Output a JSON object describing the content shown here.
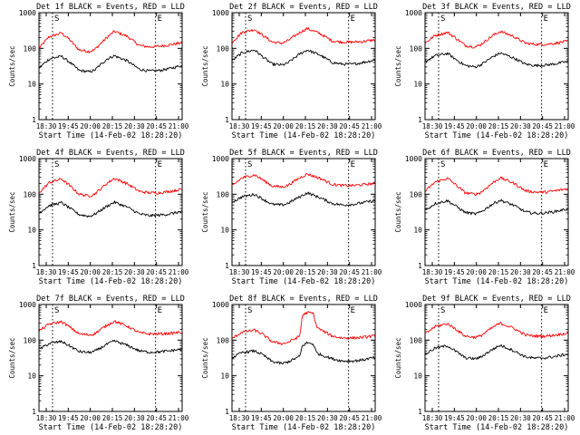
{
  "figure": {
    "x_title": "Start Time (14-Feb-02 18:28:20)",
    "y_title": "Counts/sec",
    "marker_labels": [
      "S",
      "E"
    ],
    "colors": {
      "events": "#000000",
      "lld": "#ff0000",
      "axes": "#000000"
    }
  },
  "chart_data": [
    {
      "type": "line",
      "title": "Det 1f BLACK = Events, RED = LLD",
      "yscale": "log",
      "ylim": [
        1,
        1000
      ],
      "yticks": [
        1,
        10,
        100,
        1000
      ],
      "xlim": [
        18.5,
        21.35
      ],
      "xticks": [
        18.5,
        18.75,
        19.0,
        19.25,
        19.5,
        19.75,
        20.0
      ],
      "xtick_labels": [
        "18:30",
        "19:45",
        "20:00",
        "20:15",
        "20:30",
        "20:45",
        "21:00"
      ],
      "markers": [
        {
          "label": "S",
          "x": 18.77
        },
        {
          "label": "E",
          "x": 20.82
        }
      ],
      "series": [
        {
          "color": "red",
          "x": [
            18.5,
            18.7,
            18.95,
            19.1,
            19.3,
            19.5,
            19.6,
            19.85,
            20.0,
            20.25,
            20.5,
            20.7,
            20.9,
            21.1,
            21.3
          ],
          "y": [
            100,
            210,
            270,
            180,
            90,
            82,
            90,
            200,
            300,
            220,
            120,
            110,
            115,
            125,
            140
          ]
        },
        {
          "color": "black",
          "x": [
            18.5,
            18.7,
            18.95,
            19.1,
            19.3,
            19.5,
            19.6,
            19.85,
            20.0,
            20.25,
            20.5,
            20.7,
            20.9,
            21.1,
            21.3
          ],
          "y": [
            28,
            50,
            60,
            42,
            24,
            22,
            24,
            50,
            62,
            45,
            26,
            23,
            24,
            27,
            32
          ]
        }
      ]
    },
    {
      "type": "line",
      "title": "Det 2f BLACK = Events, RED = LLD",
      "yscale": "log",
      "ylim": [
        1,
        1000
      ],
      "yticks": [
        1,
        10,
        100,
        1000
      ],
      "xlim": [
        18.5,
        21.35
      ],
      "xticks": [
        18.5,
        18.75,
        19.0,
        19.25,
        19.5,
        19.75,
        20.0
      ],
      "xtick_labels": [
        "18:30",
        "19:45",
        "20:00",
        "20:15",
        "20:30",
        "20:45",
        "21:00"
      ],
      "markers": [
        {
          "label": "S",
          "x": 18.77
        },
        {
          "label": "E",
          "x": 20.82
        }
      ],
      "series": [
        {
          "color": "red",
          "x": [
            18.5,
            18.7,
            18.95,
            19.1,
            19.3,
            19.5,
            19.6,
            19.85,
            20.0,
            20.25,
            20.5,
            20.7,
            20.9,
            21.1,
            21.3
          ],
          "y": [
            150,
            280,
            340,
            240,
            150,
            140,
            160,
            280,
            360,
            260,
            160,
            150,
            150,
            155,
            170
          ]
        },
        {
          "color": "black",
          "x": [
            18.5,
            18.7,
            18.95,
            19.1,
            19.3,
            19.5,
            19.6,
            19.85,
            20.0,
            20.25,
            20.5,
            20.7,
            20.9,
            21.1,
            21.3
          ],
          "y": [
            45,
            75,
            90,
            60,
            36,
            34,
            38,
            70,
            90,
            65,
            40,
            36,
            36,
            40,
            46
          ]
        }
      ]
    },
    {
      "type": "line",
      "title": "Det 3f BLACK = Events, RED = LLD",
      "yscale": "log",
      "ylim": [
        1,
        1000
      ],
      "yticks": [
        1,
        10,
        100,
        1000
      ],
      "xlim": [
        18.5,
        21.35
      ],
      "xticks": [
        18.5,
        18.75,
        19.0,
        19.25,
        19.5,
        19.75,
        20.0
      ],
      "xtick_labels": [
        "18:30",
        "19:45",
        "20:00",
        "20:15",
        "20:30",
        "20:45",
        "21:00"
      ],
      "markers": [
        {
          "label": "S",
          "x": 18.77
        },
        {
          "label": "E",
          "x": 20.82
        }
      ],
      "series": [
        {
          "color": "red",
          "x": [
            18.5,
            18.7,
            18.95,
            19.1,
            19.3,
            19.5,
            19.6,
            19.85,
            20.0,
            20.25,
            20.5,
            20.7,
            20.9,
            21.1,
            21.3
          ],
          "y": [
            140,
            230,
            280,
            200,
            120,
            110,
            125,
            230,
            300,
            220,
            140,
            130,
            130,
            140,
            155
          ]
        },
        {
          "color": "black",
          "x": [
            18.5,
            18.7,
            18.95,
            19.1,
            19.3,
            19.5,
            19.6,
            19.85,
            20.0,
            20.25,
            20.5,
            20.7,
            20.9,
            21.1,
            21.3
          ],
          "y": [
            42,
            62,
            72,
            50,
            33,
            30,
            34,
            58,
            74,
            55,
            36,
            33,
            34,
            37,
            42
          ]
        }
      ]
    },
    {
      "type": "line",
      "title": "Det 4f BLACK = Events, RED = LLD",
      "yscale": "log",
      "ylim": [
        1,
        1000
      ],
      "yticks": [
        1,
        10,
        100,
        1000
      ],
      "xlim": [
        18.5,
        21.35
      ],
      "xticks": [
        18.5,
        18.75,
        19.0,
        19.25,
        19.5,
        19.75,
        20.0
      ],
      "xtick_labels": [
        "18:30",
        "19:45",
        "20:00",
        "20:15",
        "20:30",
        "20:45",
        "21:00"
      ],
      "markers": [
        {
          "label": "S",
          "x": 18.77
        },
        {
          "label": "E",
          "x": 20.82
        }
      ],
      "series": [
        {
          "color": "red",
          "x": [
            18.5,
            18.7,
            18.95,
            19.1,
            19.3,
            19.5,
            19.6,
            19.85,
            20.0,
            20.25,
            20.5,
            20.7,
            20.9,
            21.1,
            21.3
          ],
          "y": [
            110,
            210,
            270,
            180,
            100,
            90,
            100,
            200,
            280,
            200,
            120,
            110,
            110,
            120,
            135
          ]
        },
        {
          "color": "black",
          "x": [
            18.5,
            18.7,
            18.95,
            19.1,
            19.3,
            19.5,
            19.6,
            19.85,
            20.0,
            20.25,
            20.5,
            20.7,
            20.9,
            21.1,
            21.3
          ],
          "y": [
            30,
            48,
            58,
            42,
            27,
            24,
            27,
            46,
            60,
            44,
            28,
            25,
            26,
            28,
            32
          ]
        }
      ]
    },
    {
      "type": "line",
      "title": "Det 5f BLACK = Events, RED = LLD",
      "yscale": "log",
      "ylim": [
        1,
        1000
      ],
      "yticks": [
        1,
        10,
        100,
        1000
      ],
      "xlim": [
        18.5,
        21.35
      ],
      "xticks": [
        18.5,
        18.75,
        19.0,
        19.25,
        19.5,
        19.75,
        20.0
      ],
      "xtick_labels": [
        "18:30",
        "19:45",
        "20:00",
        "20:15",
        "20:30",
        "20:45",
        "21:00"
      ],
      "markers": [
        {
          "label": "S",
          "x": 18.77
        },
        {
          "label": "E",
          "x": 20.82
        }
      ],
      "series": [
        {
          "color": "red",
          "x": [
            18.5,
            18.7,
            18.95,
            19.1,
            19.3,
            19.5,
            19.6,
            19.85,
            20.0,
            20.25,
            20.5,
            20.7,
            20.9,
            21.1,
            21.3
          ],
          "y": [
            170,
            290,
            350,
            260,
            170,
            160,
            175,
            290,
            370,
            280,
            190,
            175,
            175,
            185,
            200
          ]
        },
        {
          "color": "black",
          "x": [
            18.5,
            18.7,
            18.95,
            19.1,
            19.3,
            19.5,
            19.6,
            19.85,
            20.0,
            20.25,
            20.5,
            20.7,
            20.9,
            21.1,
            21.3
          ],
          "y": [
            60,
            85,
            100,
            75,
            52,
            50,
            55,
            85,
            110,
            80,
            55,
            50,
            52,
            58,
            65
          ]
        }
      ]
    },
    {
      "type": "line",
      "title": "Det 6f BLACK = Events, RED = LLD",
      "yscale": "log",
      "ylim": [
        1,
        1000
      ],
      "yticks": [
        1,
        10,
        100,
        1000
      ],
      "xlim": [
        18.5,
        21.35
      ],
      "xticks": [
        18.5,
        18.75,
        19.0,
        19.25,
        19.5,
        19.75,
        20.0
      ],
      "xtick_labels": [
        "18:30",
        "19:45",
        "20:00",
        "20:15",
        "20:30",
        "20:45",
        "21:00"
      ],
      "markers": [
        {
          "label": "S",
          "x": 18.77
        },
        {
          "label": "E",
          "x": 20.82
        }
      ],
      "series": [
        {
          "color": "red",
          "x": [
            18.5,
            18.7,
            18.95,
            19.1,
            19.3,
            19.5,
            19.6,
            19.85,
            20.0,
            20.25,
            20.5,
            20.7,
            20.9,
            21.1,
            21.3
          ],
          "y": [
            120,
            220,
            280,
            190,
            110,
            100,
            110,
            210,
            290,
            210,
            125,
            115,
            115,
            125,
            140
          ]
        },
        {
          "color": "black",
          "x": [
            18.5,
            18.7,
            18.95,
            19.1,
            19.3,
            19.5,
            19.6,
            19.85,
            20.0,
            20.25,
            20.5,
            20.7,
            20.9,
            21.1,
            21.3
          ],
          "y": [
            35,
            55,
            66,
            48,
            31,
            28,
            31,
            54,
            68,
            50,
            32,
            29,
            30,
            33,
            38
          ]
        }
      ]
    },
    {
      "type": "line",
      "title": "Det 7f BLACK = Events, RED = LLD",
      "yscale": "log",
      "ylim": [
        1,
        1000
      ],
      "yticks": [
        1,
        10,
        100,
        1000
      ],
      "xlim": [
        18.5,
        21.35
      ],
      "xticks": [
        18.5,
        18.75,
        19.0,
        19.25,
        19.5,
        19.75,
        20.0
      ],
      "xtick_labels": [
        "18:30",
        "19:45",
        "20:00",
        "20:15",
        "20:30",
        "20:45",
        "21:00"
      ],
      "markers": [
        {
          "label": "S",
          "x": 18.77
        },
        {
          "label": "E",
          "x": 20.82
        }
      ],
      "series": [
        {
          "color": "red",
          "x": [
            18.5,
            18.7,
            18.95,
            19.1,
            19.3,
            19.5,
            19.6,
            19.85,
            20.0,
            20.25,
            20.5,
            20.7,
            20.9,
            21.1,
            21.3
          ],
          "y": [
            180,
            280,
            330,
            240,
            150,
            140,
            150,
            260,
            340,
            250,
            160,
            150,
            150,
            155,
            165
          ]
        },
        {
          "color": "black",
          "x": [
            18.5,
            18.7,
            18.95,
            19.1,
            19.3,
            19.5,
            19.6,
            19.85,
            20.0,
            20.25,
            20.5,
            20.7,
            20.9,
            21.1,
            21.3
          ],
          "y": [
            55,
            80,
            92,
            70,
            48,
            45,
            48,
            76,
            95,
            72,
            50,
            46,
            47,
            50,
            55
          ]
        }
      ]
    },
    {
      "type": "line",
      "title": "Det 8f BLACK = Events, RED = LLD",
      "yscale": "log",
      "ylim": [
        1,
        1000
      ],
      "yticks": [
        1,
        10,
        100,
        1000
      ],
      "xlim": [
        18.5,
        21.35
      ],
      "xticks": [
        18.5,
        18.75,
        19.0,
        19.25,
        19.5,
        19.75,
        20.0
      ],
      "xtick_labels": [
        "18:30",
        "19:45",
        "20:00",
        "20:15",
        "20:30",
        "20:45",
        "21:00"
      ],
      "markers": [
        {
          "label": "S",
          "x": 18.77
        },
        {
          "label": "E",
          "x": 20.82
        }
      ],
      "series": [
        {
          "color": "red",
          "x": [
            18.5,
            18.7,
            18.95,
            19.1,
            19.3,
            19.5,
            19.6,
            19.85,
            19.9,
            20.0,
            20.12,
            20.18,
            20.25,
            20.5,
            20.7,
            20.9,
            21.1,
            21.3
          ],
          "y": [
            110,
            170,
            190,
            150,
            90,
            80,
            85,
            130,
            500,
            600,
            560,
            250,
            200,
            130,
            115,
            115,
            120,
            130
          ]
        },
        {
          "color": "black",
          "x": [
            18.5,
            18.7,
            18.95,
            19.1,
            19.3,
            19.5,
            19.6,
            19.85,
            19.9,
            20.0,
            20.12,
            20.18,
            20.25,
            20.5,
            20.7,
            20.9,
            21.1,
            21.3
          ],
          "y": [
            32,
            45,
            50,
            40,
            25,
            22,
            24,
            35,
            70,
            85,
            78,
            45,
            40,
            30,
            26,
            26,
            28,
            32
          ]
        }
      ]
    },
    {
      "type": "line",
      "title": "Det 9f BLACK = Events, RED = LLD",
      "yscale": "log",
      "ylim": [
        1,
        1000
      ],
      "yticks": [
        1,
        10,
        100,
        1000
      ],
      "xlim": [
        18.5,
        21.35
      ],
      "xticks": [
        18.5,
        18.75,
        19.0,
        19.25,
        19.5,
        19.75,
        20.0
      ],
      "xtick_labels": [
        "18:30",
        "19:45",
        "20:00",
        "20:15",
        "20:30",
        "20:45",
        "21:00"
      ],
      "markers": [
        {
          "label": "S",
          "x": 18.77
        },
        {
          "label": "E",
          "x": 20.82
        }
      ],
      "series": [
        {
          "color": "red",
          "x": [
            18.5,
            18.7,
            18.95,
            19.1,
            19.3,
            19.5,
            19.6,
            19.85,
            20.0,
            20.25,
            20.5,
            20.7,
            20.9,
            21.1,
            21.3
          ],
          "y": [
            150,
            240,
            290,
            210,
            130,
            120,
            130,
            230,
            300,
            220,
            140,
            130,
            130,
            140,
            155
          ]
        },
        {
          "color": "black",
          "x": [
            18.5,
            18.7,
            18.95,
            19.1,
            19.3,
            19.5,
            19.6,
            19.85,
            20.0,
            20.25,
            20.5,
            20.7,
            20.9,
            21.1,
            21.3
          ],
          "y": [
            40,
            60,
            70,
            50,
            32,
            30,
            33,
            56,
            72,
            52,
            34,
            31,
            32,
            35,
            40
          ]
        }
      ]
    }
  ]
}
